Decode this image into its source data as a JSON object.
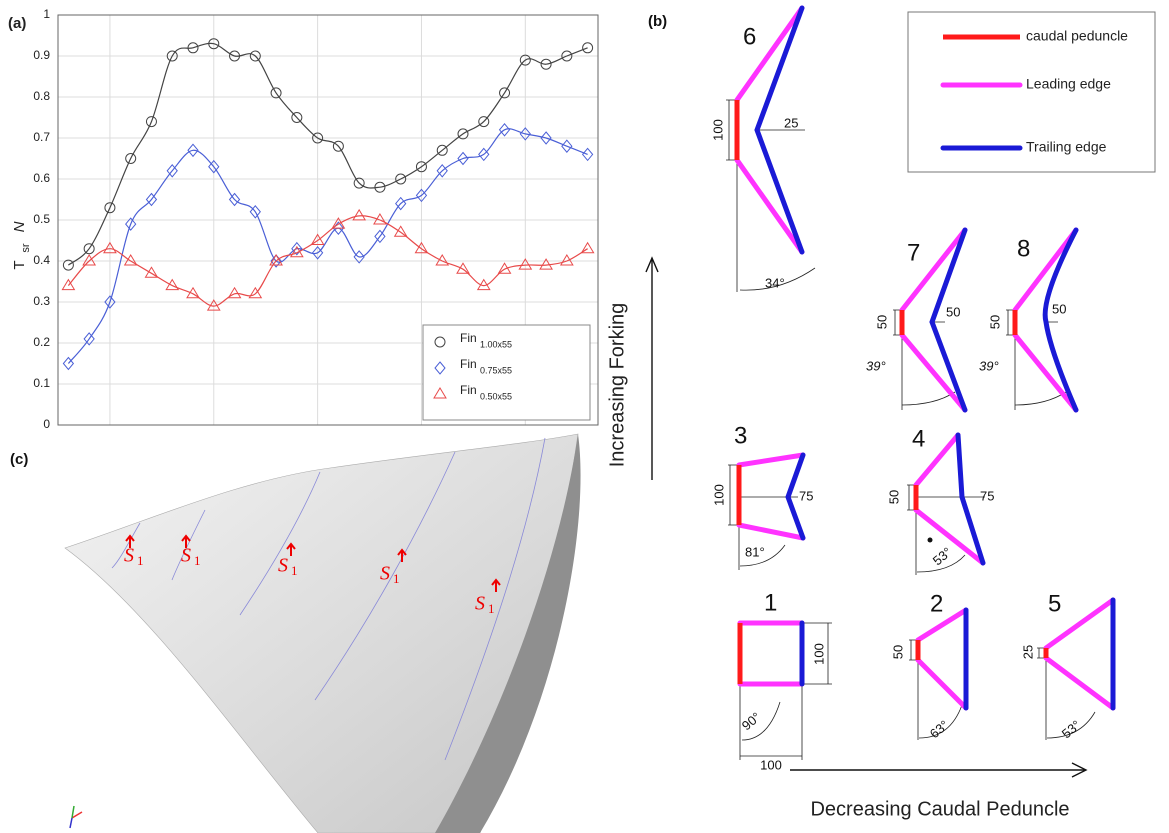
{
  "chart_data": {
    "type": "line",
    "panel_label": "(a)",
    "ylabel": "T",
    "ylabel_sub": "sr",
    "ylabel_suffix": "N",
    "categories": [
      null,
      null,
      null,
      null,
      null,
      null,
      null,
      null,
      null,
      null,
      null,
      null,
      null,
      null,
      null,
      null,
      null,
      null,
      null,
      null,
      null,
      null,
      null,
      null,
      null,
      null
    ],
    "ylim": [
      0,
      1
    ],
    "yticks": [
      0,
      0.1,
      0.2,
      0.3,
      0.4,
      0.5,
      0.6,
      0.7,
      0.8,
      0.9,
      1
    ],
    "grid": true,
    "series": [
      {
        "name": "Fin",
        "name_sub": "1.00x55",
        "color": "#444444",
        "marker": "circle",
        "values": [
          0.39,
          0.43,
          0.53,
          0.65,
          0.74,
          0.9,
          0.92,
          0.93,
          0.9,
          0.9,
          0.81,
          0.75,
          0.7,
          0.68,
          0.59,
          0.58,
          0.6,
          0.63,
          0.67,
          0.71,
          0.74,
          0.81,
          0.89,
          0.88,
          0.9,
          0.92
        ]
      },
      {
        "name": "Fin",
        "name_sub": "0.75x55",
        "color": "#4a5fd6",
        "marker": "diamond",
        "values": [
          0.15,
          0.21,
          0.3,
          0.49,
          0.55,
          0.62,
          0.67,
          0.63,
          0.55,
          0.52,
          0.4,
          0.43,
          0.42,
          0.48,
          0.41,
          0.46,
          0.54,
          0.56,
          0.62,
          0.65,
          0.66,
          0.72,
          0.71,
          0.7,
          0.68,
          0.66
        ]
      },
      {
        "name": "Fin",
        "name_sub": "0.50x55",
        "color": "#e84a4a",
        "marker": "triangle",
        "values": [
          0.34,
          0.4,
          0.43,
          0.4,
          0.37,
          0.34,
          0.32,
          0.29,
          0.32,
          0.32,
          0.4,
          0.42,
          0.45,
          0.49,
          0.51,
          0.5,
          0.47,
          0.43,
          0.4,
          0.38,
          0.34,
          0.38,
          0.39,
          0.39,
          0.4,
          0.43
        ]
      }
    ]
  },
  "panel_b": {
    "label": "(b)",
    "legend": [
      "caudal peduncle",
      "Leading edge",
      "Trailing edge"
    ],
    "arrows": [
      "Increasing Forking",
      "Decreasing Caudal Peduncle"
    ],
    "shapes": [
      {
        "number": 6,
        "dims": [
          "100",
          "25",
          "34°"
        ]
      },
      {
        "number": 7,
        "dims": [
          "50",
          "50",
          "39°"
        ]
      },
      {
        "number": 8,
        "dims": [
          "50",
          "50",
          "39°"
        ]
      },
      {
        "number": 3,
        "dims": [
          "100",
          "75",
          "81°"
        ]
      },
      {
        "number": 4,
        "dims": [
          "50",
          "75",
          "53°"
        ]
      },
      {
        "number": 1,
        "dims": [
          "100",
          "90°",
          "100"
        ]
      },
      {
        "number": 2,
        "dims": [
          "50",
          "63°"
        ]
      },
      {
        "number": 5,
        "dims": [
          "25",
          "53°"
        ]
      }
    ]
  },
  "panel_c": {
    "label": "(c)",
    "sections": [
      {
        "main": "S",
        "sub": "1"
      },
      {
        "main": "S",
        "sub": "1"
      },
      {
        "main": "S",
        "sub": "1"
      },
      {
        "main": "S",
        "sub": "1"
      },
      {
        "main": "S",
        "sub": "1"
      }
    ]
  }
}
